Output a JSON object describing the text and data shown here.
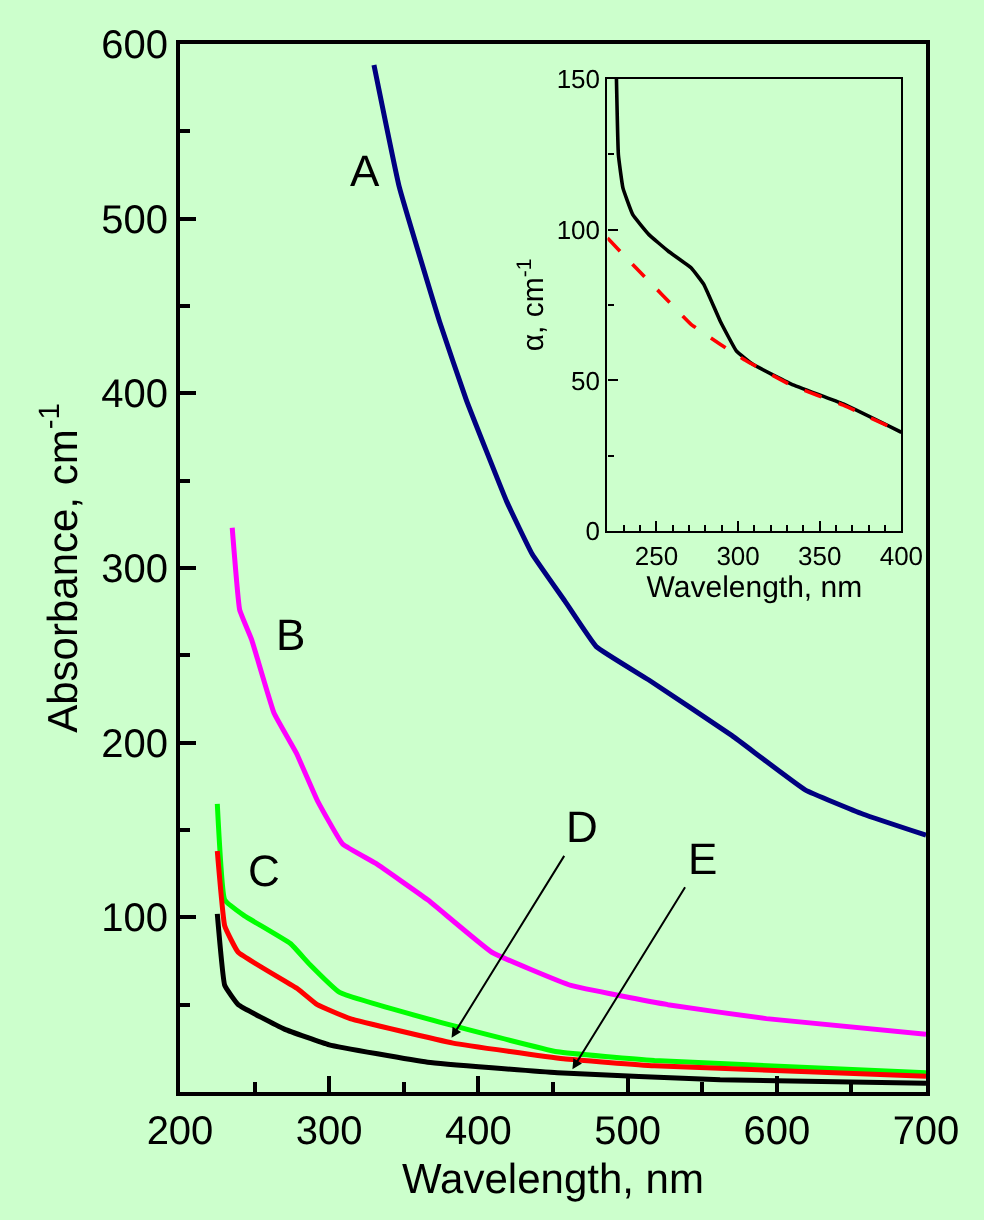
{
  "chart_data": [
    {
      "type": "line",
      "xlabel": "Wavelength, nm",
      "ylabel": "Absorbance, cm$^{-1}$",
      "xlim": [
        200,
        700
      ],
      "xticks": [
        200,
        {
          "value": 250,
          "label": null
        },
        300,
        {
          "value": 350,
          "label": null
        },
        400,
        {
          "value": 450,
          "label": null
        },
        500,
        {
          "value": 550,
          "label": null
        },
        600,
        {
          "value": 650,
          "label": null
        },
        700
      ],
      "ylim": [
        0,
        600
      ],
      "yticks": [
        {
          "value": 50,
          "label": null
        },
        100,
        {
          "value": 150,
          "label": null
        },
        200,
        {
          "value": 250,
          "label": null
        },
        300,
        {
          "value": 350,
          "label": null
        },
        400,
        {
          "value": 450,
          "label": null
        },
        500,
        {
          "value": 550,
          "label": null
        },
        600
      ],
      "series": [
        {
          "color": "#000080",
          "x": [
            330,
            347,
            374,
            392,
            419,
            436,
            458,
            479,
            514,
            570,
            619,
            658,
            700
          ],
          "values": [
            588,
            518,
            441,
            396,
            338,
            308,
            281,
            255,
            236,
            204,
            173,
            159,
            147
          ]
        },
        {
          "color": "#ff00ff",
          "x": [
            235,
            240,
            248,
            263,
            278,
            292,
            309,
            331,
            366,
            409,
            462,
            527,
            593,
            700
          ],
          "values": [
            323,
            276,
            259,
            217,
            194,
            167,
            142,
            131,
            110,
            80,
            61,
            50,
            42,
            33
          ]
        },
        {
          "color": "#00ff00",
          "x": [
            225,
            230,
            243,
            274,
            287,
            307,
            374,
            453,
            518,
            700
          ],
          "values": [
            165,
            110,
            101,
            85,
            73,
            57,
            40,
            23,
            18,
            11
          ]
        },
        {
          "color": "#ff0000",
          "x": [
            225,
            230,
            239,
            279,
            292,
            314,
            383,
            457,
            518,
            700
          ],
          "values": [
            138,
            95,
            80,
            59,
            50,
            42,
            28,
            19,
            15,
            9
          ]
        },
        {
          "color": "#000000",
          "x": [
            225,
            230,
            239,
            270,
            300,
            366,
            453,
            562,
            700
          ],
          "values": [
            102,
            61,
            50,
            36,
            27,
            17,
            11,
            7,
            5
          ]
        }
      ],
      "annotations": [
        {
          "text": "A",
          "x": 347,
          "y": 518
        },
        {
          "text": "B",
          "x": 248,
          "y": 259
        },
        {
          "text": "C",
          "x": 243,
          "y": 101
        },
        {
          "text": "D",
          "x": 382,
          "y": 31
        },
        {
          "text": "E",
          "x": 463,
          "y": 13
        }
      ]
    },
    {
      "type": "line",
      "xlabel": "Wavelength, nm",
      "ylabel": "α, cm$^{-1}$",
      "xlim": [
        220,
        400
      ],
      "xticks": [
        {
          "value": 230,
          "label": null
        },
        {
          "value": 240,
          "label": null
        },
        250,
        {
          "value": 260,
          "label": null
        },
        {
          "value": 270,
          "label": null
        },
        {
          "value": 280,
          "label": null
        },
        {
          "value": 290,
          "label": null
        },
        300,
        {
          "value": 310,
          "label": null
        },
        {
          "value": 320,
          "label": null
        },
        {
          "value": 330,
          "label": null
        },
        {
          "value": 340,
          "label": null
        },
        350,
        {
          "value": 360,
          "label": null
        },
        {
          "value": 370,
          "label": null
        },
        {
          "value": 380,
          "label": null
        },
        {
          "value": 390,
          "label": null
        },
        400
      ],
      "ylim": [
        0,
        150
      ],
      "yticks": [
        0,
        {
          "value": 25,
          "label": null
        },
        50,
        {
          "value": 75,
          "label": null
        },
        100,
        {
          "value": 125,
          "label": null
        },
        150
      ],
      "series": [
        {
          "color": "#000000",
          "line_style": "solid",
          "x": [
            225.5,
            226.7,
            229.5,
            235.5,
            245.4,
            257.3,
            271.2,
            279,
            289,
            298.9,
            308.8,
            332.6,
            364.4,
            400
          ],
          "values": [
            150,
            124.7,
            113.7,
            104.9,
            98.3,
            92.8,
            87.3,
            81.8,
            69.7,
            59.8,
            55.4,
            48.8,
            42.2,
            32.8
          ]
        },
        {
          "color": "#ff0000",
          "line_style": "dashed",
          "x": [
            220,
            237.4,
            253.3,
            271.2,
            289,
            304.9,
            332.6,
            364.4,
            400
          ],
          "values": [
            97.2,
            87.3,
            78.5,
            68.6,
            62,
            56.5,
            48.4,
            41.8,
            32.8
          ]
        }
      ]
    }
  ]
}
